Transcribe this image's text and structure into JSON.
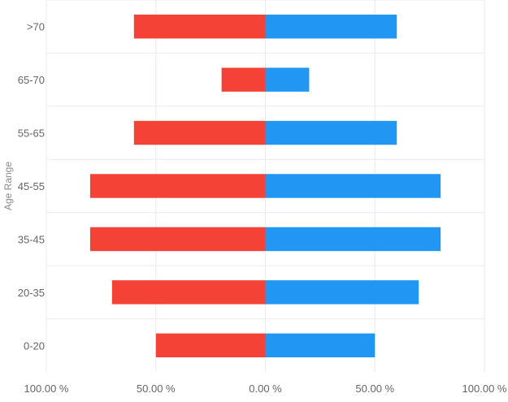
{
  "chart_data": {
    "type": "bar",
    "orientation": "horizontal",
    "stacked": true,
    "ylabel": "Age Range",
    "xlabel": "",
    "categories": [
      "0-20",
      "20-35",
      "35-45",
      "45-55",
      "55-65",
      "65-70",
      ">70"
    ],
    "x_ticks": [
      "100.00 %",
      "50.00 %",
      "0.00 %",
      "50.00 %",
      "100.00 %"
    ],
    "xlim": [
      -100,
      100
    ],
    "grid": true,
    "legend": "none",
    "series": [
      {
        "color": "#f44336",
        "values": [
          -50,
          -70,
          -80,
          -80,
          -60,
          -20,
          -60
        ]
      },
      {
        "color": "#2196f3",
        "values": [
          50,
          70,
          80,
          80,
          60,
          20,
          60
        ]
      }
    ]
  }
}
